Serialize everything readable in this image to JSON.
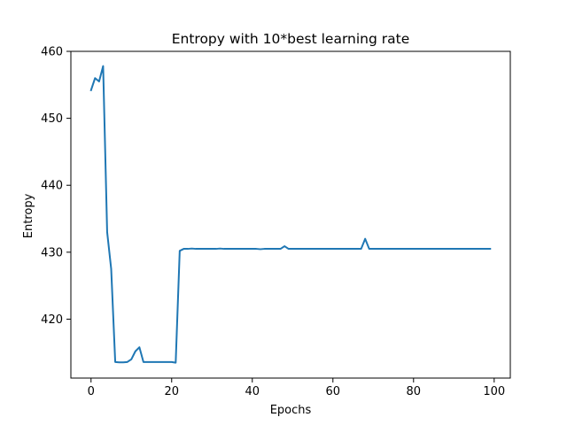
{
  "chart_data": {
    "type": "line",
    "title": "Entropy with 10*best learning rate",
    "xlabel": "Epochs",
    "ylabel": "Entropy",
    "xlim": [
      -5,
      104
    ],
    "ylim": [
      411.2,
      460
    ],
    "xticks": [
      0,
      20,
      40,
      60,
      80,
      100
    ],
    "yticks": [
      420,
      430,
      440,
      450,
      460
    ],
    "grid": false,
    "line_color": "#1f77b4",
    "series": [
      {
        "x": [
          0,
          1,
          2,
          3,
          4,
          5,
          6,
          7,
          8,
          9,
          10,
          11,
          12,
          13,
          14,
          15,
          16,
          17,
          18,
          19,
          20,
          21,
          22,
          23,
          24,
          25,
          26,
          27,
          28,
          29,
          30,
          31,
          32,
          33,
          34,
          35,
          36,
          37,
          38,
          39,
          40,
          41,
          42,
          43,
          44,
          45,
          46,
          47,
          48,
          49,
          50,
          51,
          52,
          53,
          54,
          55,
          56,
          57,
          58,
          59,
          60,
          61,
          62,
          63,
          64,
          65,
          66,
          67,
          68,
          69,
          70,
          71,
          72,
          73,
          74,
          75,
          76,
          77,
          78,
          79,
          80,
          81,
          82,
          83,
          84,
          85,
          86,
          87,
          88,
          89,
          90,
          91,
          92,
          93,
          94,
          95,
          96,
          97,
          98,
          99
        ],
        "values": [
          454.2,
          456.0,
          455.5,
          457.8,
          433.0,
          427.5,
          413.6,
          413.55,
          413.55,
          413.6,
          414.0,
          415.2,
          415.8,
          413.6,
          413.6,
          413.6,
          413.6,
          413.6,
          413.6,
          413.6,
          413.6,
          413.5,
          430.2,
          430.5,
          430.5,
          430.55,
          430.5,
          430.5,
          430.5,
          430.5,
          430.5,
          430.5,
          430.55,
          430.5,
          430.5,
          430.5,
          430.5,
          430.5,
          430.5,
          430.5,
          430.5,
          430.5,
          430.45,
          430.5,
          430.5,
          430.5,
          430.5,
          430.5,
          430.9,
          430.5,
          430.5,
          430.5,
          430.5,
          430.5,
          430.5,
          430.5,
          430.5,
          430.5,
          430.5,
          430.5,
          430.5,
          430.5,
          430.5,
          430.5,
          430.5,
          430.5,
          430.5,
          430.5,
          432.0,
          430.5,
          430.5,
          430.5,
          430.5,
          430.5,
          430.5,
          430.5,
          430.5,
          430.5,
          430.5,
          430.5,
          430.5,
          430.5,
          430.5,
          430.5,
          430.5,
          430.5,
          430.5,
          430.5,
          430.5,
          430.5,
          430.5,
          430.5,
          430.5,
          430.5,
          430.5,
          430.5,
          430.5,
          430.5,
          430.5,
          430.5
        ]
      }
    ]
  }
}
